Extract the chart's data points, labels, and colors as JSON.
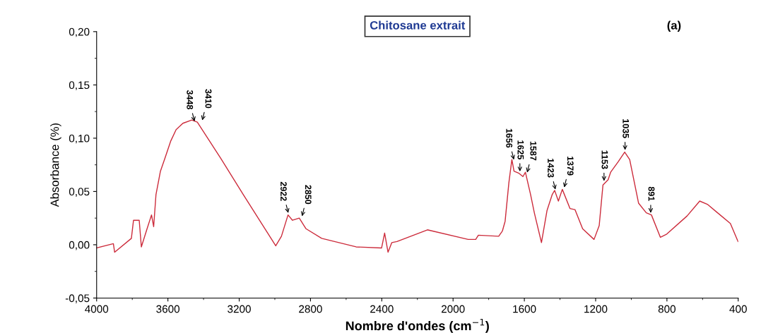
{
  "chart_data": {
    "type": "line",
    "title": "Chitosane extrait",
    "xlabel": "Nombre d'ondes (cm$^{−1}$)",
    "ylabel": "Absorbance (%)",
    "x": [
      4000,
      3906,
      3899,
      3805,
      3793,
      3761,
      3749,
      3717,
      3692,
      3680,
      3667,
      3642,
      3617,
      3585,
      3554,
      3516,
      3466,
      3435,
      3303,
      3177,
      2995,
      2963,
      2926,
      2901,
      2863,
      2825,
      2737,
      2544,
      2401,
      2384,
      2365,
      2344,
      2315,
      2144,
      1915,
      1873,
      1858,
      1744,
      1723,
      1708,
      1687,
      1670,
      1658,
      1630,
      1608,
      1594,
      1565,
      1544,
      1504,
      1473,
      1444,
      1430,
      1409,
      1387,
      1344,
      1316,
      1273,
      1209,
      1180,
      1159,
      1130,
      1116,
      1073,
      1037,
      1009,
      959,
      916,
      887,
      837,
      801,
      687,
      616,
      573,
      516,
      444,
      401
    ],
    "series": [
      {
        "color": "#cc2b3b",
        "values": [
          -0.003,
          0.001,
          -0.007,
          0.006,
          0.023,
          0.023,
          -0.002,
          0.015,
          0.028,
          0.017,
          0.047,
          0.069,
          0.081,
          0.097,
          0.108,
          0.114,
          0.117,
          0.115,
          0.081,
          0.047,
          -0.001,
          0.008,
          0.028,
          0.023,
          0.025,
          0.015,
          0.006,
          -0.002,
          -0.003,
          0.011,
          -0.007,
          0.002,
          0.003,
          0.014,
          0.005,
          0.005,
          0.009,
          0.008,
          0.013,
          0.022,
          0.058,
          0.08,
          0.069,
          0.067,
          0.064,
          0.068,
          0.047,
          0.03,
          0.002,
          0.032,
          0.047,
          0.051,
          0.041,
          0.052,
          0.034,
          0.033,
          0.015,
          0.005,
          0.018,
          0.056,
          0.061,
          0.068,
          0.078,
          0.087,
          0.08,
          0.039,
          0.03,
          0.028,
          0.007,
          0.01,
          0.027,
          0.041,
          0.038,
          0.03,
          0.02,
          0.003
        ]
      }
    ],
    "xlim": [
      4000,
      400
    ],
    "xticks": [
      4000,
      3600,
      3200,
      2800,
      2400,
      2000,
      1600,
      1200,
      800,
      400
    ],
    "ylim": [
      -0.05,
      0.2
    ],
    "yticks": [
      {
        "value": -0.05,
        "label": "-0,05"
      },
      {
        "value": 0,
        "label": "0,00"
      },
      {
        "value": 0.05,
        "label": "0,05"
      },
      {
        "value": 0.1,
        "label": "0,10"
      },
      {
        "value": 0.15,
        "label": "0,15"
      },
      {
        "value": 0.2,
        "label": "0,20"
      }
    ],
    "grid": false,
    "marker": "none",
    "line_style": "solid",
    "annotations": [
      {
        "text": "3448",
        "x": 3448,
        "y": 0.114
      },
      {
        "text": "3410",
        "x": 3410,
        "y": 0.115
      },
      {
        "text": "2922",
        "x": 2922,
        "y": 0.028
      },
      {
        "text": "2850",
        "x": 2850,
        "y": 0.025
      },
      {
        "text": "1656",
        "x": 1656,
        "y": 0.078
      },
      {
        "text": "1625",
        "x": 1625,
        "y": 0.067
      },
      {
        "text": "1587",
        "x": 1587,
        "y": 0.066
      },
      {
        "text": "1423",
        "x": 1423,
        "y": 0.05
      },
      {
        "text": "1379",
        "x": 1379,
        "y": 0.052
      },
      {
        "text": "1153",
        "x": 1153,
        "y": 0.058
      },
      {
        "text": "1035",
        "x": 1035,
        "y": 0.087
      },
      {
        "text": "891",
        "x": 891,
        "y": 0.028
      },
      "(a)"
    ]
  }
}
